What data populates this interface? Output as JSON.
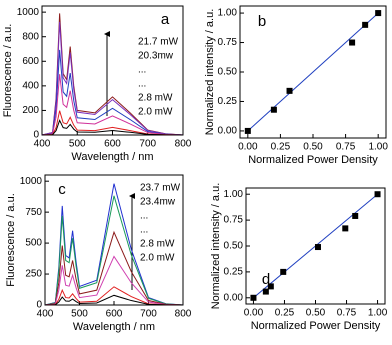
{
  "chart_data": [
    {
      "type": "line",
      "label": "a",
      "x_label": "Wavelength / nm",
      "y_label": "Fluorescence / a.u.",
      "x": [
        400,
        430,
        440,
        450,
        460,
        470,
        480,
        490,
        500,
        550,
        600,
        650,
        700,
        750,
        800
      ],
      "series": [
        {
          "name": "21.7 mW",
          "color": "#8b1a1a",
          "values": [
            0,
            20,
            300,
            990,
            500,
            450,
            720,
            400,
            200,
            180,
            310,
            180,
            40,
            10,
            0
          ]
        },
        {
          "name": "20.3mw",
          "color": "#7b2fbe",
          "values": [
            0,
            19,
            279,
            921,
            465,
            419,
            670,
            372,
            186,
            167,
            288,
            167,
            37,
            9,
            0
          ]
        },
        {
          "color": "#1f3fbf",
          "values": [
            0,
            14,
            210,
            693,
            350,
            315,
            504,
            280,
            140,
            126,
            217,
            126,
            28,
            7,
            0
          ]
        },
        {
          "color": "#d0309a",
          "values": [
            0,
            10,
            150,
            495,
            250,
            225,
            360,
            200,
            100,
            90,
            155,
            90,
            20,
            5,
            0
          ]
        },
        {
          "name": "2.8 mW",
          "color": "#e02020",
          "values": [
            0,
            4,
            60,
            198,
            100,
            90,
            144,
            80,
            40,
            36,
            62,
            36,
            8,
            2,
            0
          ]
        },
        {
          "name": "2.0 mW",
          "color": "#000000",
          "values": [
            0,
            2,
            36,
            119,
            60,
            54,
            86,
            48,
            24,
            22,
            37,
            22,
            5,
            1,
            0
          ]
        }
      ],
      "annotations": [
        "...",
        "..."
      ],
      "xlim": [
        400,
        800
      ],
      "xticks": [
        400,
        500,
        600,
        700,
        800
      ],
      "ylim": [
        0,
        1050
      ],
      "yticks": [
        0,
        200,
        400,
        600,
        800,
        1000
      ]
    },
    {
      "type": "scatter",
      "label": "b",
      "x_label": "Normalized Power Density",
      "y_label": "Normalized intensity / a.u.",
      "x": [
        0,
        0.2,
        0.32,
        0.8,
        0.9,
        1.0
      ],
      "values": [
        0,
        0.18,
        0.34,
        0.75,
        0.9,
        1.0
      ],
      "color": "#000000",
      "fit": {
        "x": [
          0,
          1.0
        ],
        "y": [
          0,
          1.0
        ],
        "color": "#2040c0"
      },
      "xlim": [
        -0.06,
        1.06
      ],
      "xticks": [
        {
          "value": 0,
          "label": "0.00"
        },
        {
          "value": 0.25,
          "label": "0.25"
        },
        {
          "value": 0.5,
          "label": "0.50"
        },
        {
          "value": 0.75,
          "label": "0.75"
        },
        {
          "value": 1.0,
          "label": "1.00"
        }
      ],
      "ylim": [
        -0.06,
        1.06
      ],
      "yticks": [
        {
          "value": 0,
          "label": "0.00"
        },
        {
          "value": 0.25,
          "label": "0.25"
        },
        {
          "value": 0.5,
          "label": "0.50"
        },
        {
          "value": 0.75,
          "label": "0.75"
        },
        {
          "value": 1.0,
          "label": "1.00"
        }
      ]
    },
    {
      "type": "line",
      "label": "c",
      "x_label": "Wavelength / nm",
      "y_label": "Fluorescence / a.u.",
      "x": [
        400,
        430,
        440,
        450,
        460,
        470,
        480,
        490,
        500,
        550,
        600,
        650,
        700,
        750,
        800
      ],
      "series": [
        {
          "name": "23.7 mW",
          "color": "#2030d0",
          "values": [
            0,
            20,
            300,
            800,
            400,
            380,
            600,
            350,
            150,
            200,
            980,
            450,
            60,
            10,
            0
          ]
        },
        {
          "name": "23.4mw",
          "color": "#1a9a5a",
          "values": [
            0,
            18,
            270,
            720,
            360,
            342,
            540,
            315,
            135,
            180,
            882,
            405,
            54,
            9,
            0
          ]
        },
        {
          "color": "#8b1a1a",
          "values": [
            0,
            12,
            180,
            480,
            240,
            228,
            360,
            210,
            90,
            120,
            588,
            270,
            36,
            6,
            0
          ]
        },
        {
          "color": "#d040b0",
          "values": [
            0,
            8,
            120,
            320,
            160,
            152,
            240,
            140,
            60,
            80,
            392,
            180,
            24,
            4,
            0
          ]
        },
        {
          "name": "2.8 mW",
          "color": "#e02020",
          "values": [
            0,
            3,
            45,
            120,
            60,
            57,
            90,
            53,
            23,
            30,
            147,
            68,
            9,
            2,
            0
          ]
        },
        {
          "name": "2.0 mW",
          "color": "#000000",
          "values": [
            0,
            2,
            24,
            64,
            32,
            30,
            48,
            28,
            12,
            16,
            78,
            36,
            5,
            1,
            0
          ]
        }
      ],
      "annotations": [
        "...",
        "..."
      ],
      "xlim": [
        400,
        800
      ],
      "xticks": [
        400,
        500,
        600,
        700,
        800
      ],
      "ylim": [
        0,
        1050
      ],
      "yticks": [
        0,
        250,
        500,
        750,
        1000
      ]
    },
    {
      "type": "scatter",
      "label": "d",
      "x_label": "Normalized Power Density",
      "y_label": "Normalized intensity / a.u.",
      "x": [
        0,
        0.1,
        0.14,
        0.24,
        0.52,
        0.74,
        0.82,
        1.0
      ],
      "values": [
        0,
        0.06,
        0.11,
        0.25,
        0.49,
        0.67,
        0.79,
        1.0
      ],
      "color": "#000000",
      "fit": {
        "x": [
          0,
          1.0
        ],
        "y": [
          0,
          1.0
        ],
        "color": "#2040c0"
      },
      "xlim": [
        -0.06,
        1.06
      ],
      "xticks": [
        {
          "value": 0,
          "label": "0.00"
        },
        {
          "value": 0.25,
          "label": "0.25"
        },
        {
          "value": 0.5,
          "label": "0.50"
        },
        {
          "value": 0.75,
          "label": "0.75"
        },
        {
          "value": 1.0,
          "label": "1.00"
        }
      ],
      "ylim": [
        -0.06,
        1.06
      ],
      "yticks": [
        {
          "value": 0,
          "label": "0.00"
        },
        {
          "value": 0.25,
          "label": "0.25"
        },
        {
          "value": 0.5,
          "label": "0.50"
        },
        {
          "value": 0.75,
          "label": "0.75"
        },
        {
          "value": 1.0,
          "label": "1.00"
        }
      ]
    }
  ]
}
